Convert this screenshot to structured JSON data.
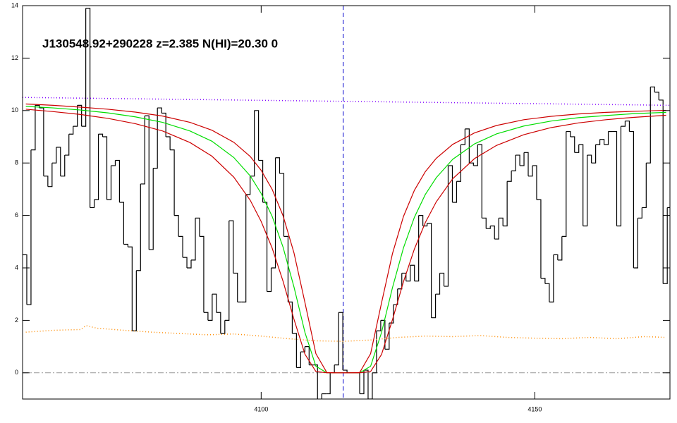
{
  "chart_data": {
    "type": "line",
    "title": "J130548.92+290228 z=2.385 N(HI)=20.30 0",
    "xlim": [
      4056.4,
      4174.7
    ],
    "ylim": [
      -1,
      14
    ],
    "xticks": [
      4100,
      4150
    ],
    "yticks": [
      0,
      2,
      4,
      6,
      8,
      10,
      12,
      14
    ],
    "vline": 4115,
    "vline_color": "#0000cc",
    "hline": 0,
    "hline_color": "#999999",
    "series": [
      {
        "color": "#000000",
        "style": "steps",
        "x": [
          4056.4,
          4057.17,
          4057.94,
          4058.71,
          4059.48,
          4060.25,
          4061.02,
          4061.79,
          4062.56,
          4063.33,
          4064.1,
          4064.87,
          4065.64,
          4066.41,
          4067.18,
          4067.95,
          4068.72,
          4069.49,
          4070.26,
          4071.03,
          4071.8,
          4072.57,
          4073.34,
          4074.11,
          4074.88,
          4075.65,
          4076.42,
          4077.19,
          4077.96,
          4078.73,
          4079.5,
          4080.27,
          4081.04,
          4081.81,
          4082.58,
          4083.35,
          4084.12,
          4084.89,
          4085.66,
          4086.43,
          4087.2,
          4087.97,
          4088.74,
          4089.51,
          4090.28,
          4091.05,
          4091.82,
          4092.59,
          4093.36,
          4094.13,
          4094.9,
          4095.67,
          4096.44,
          4097.21,
          4097.98,
          4098.75,
          4099.52,
          4100.29,
          4101.06,
          4101.83,
          4102.6,
          4103.37,
          4104.14,
          4104.91,
          4105.68,
          4106.45,
          4107.22,
          4107.99,
          4108.76,
          4109.53,
          4110.3,
          4111.07,
          4111.84,
          4112.61,
          4113.38,
          4114.15,
          4114.92,
          4115.69,
          4116.46,
          4117.23,
          4118.0,
          4118.77,
          4119.54,
          4120.31,
          4121.08,
          4121.85,
          4122.62,
          4123.39,
          4124.16,
          4124.93,
          4125.7,
          4126.47,
          4127.24,
          4128.01,
          4128.78,
          4129.55,
          4130.32,
          4131.09,
          4131.86,
          4132.63,
          4133.4,
          4134.17,
          4134.94,
          4135.71,
          4136.48,
          4137.25,
          4138.02,
          4138.79,
          4139.56,
          4140.33,
          4141.1,
          4141.87,
          4142.64,
          4143.41,
          4144.18,
          4144.95,
          4145.72,
          4146.49,
          4147.26,
          4148.03,
          4148.8,
          4149.57,
          4150.34,
          4151.11,
          4151.88,
          4152.65,
          4153.42,
          4154.19,
          4154.96,
          4155.73,
          4156.5,
          4157.27,
          4158.04,
          4158.81,
          4159.58,
          4160.35,
          4161.12,
          4161.89,
          4162.66,
          4163.43,
          4164.2,
          4164.97,
          4165.74,
          4166.51,
          4167.28,
          4168.05,
          4168.82,
          4169.59,
          4170.36,
          4171.13,
          4171.9,
          4172.67,
          4173.44,
          4174.21
        ],
        "values": [
          4.5,
          2.6,
          8.5,
          10.2,
          10.1,
          7.5,
          7.1,
          8.0,
          8.6,
          7.5,
          8.3,
          9.1,
          9.4,
          10.2,
          9.4,
          13.9,
          6.3,
          6.6,
          9.1,
          9.0,
          6.6,
          7.9,
          8.1,
          6.5,
          4.9,
          4.8,
          1.6,
          3.9,
          7.2,
          9.8,
          4.7,
          7.8,
          10.1,
          9.9,
          9.0,
          8.5,
          6.0,
          5.2,
          4.4,
          4.0,
          4.3,
          5.9,
          5.2,
          2.3,
          2.0,
          3.0,
          2.3,
          1.5,
          2.0,
          5.8,
          3.8,
          2.7,
          2.7,
          6.8,
          7.5,
          10.0,
          8.1,
          6.5,
          3.1,
          4.0,
          8.2,
          7.6,
          5.2,
          2.7,
          1.5,
          0.2,
          0.8,
          1.0,
          0.3,
          0.3,
          -1.2,
          -0.8,
          -0.8,
          0.0,
          0.3,
          2.3,
          0.1,
          0.0,
          0.0,
          0.0,
          -0.8,
          0.1,
          -1.0,
          0.0,
          1.6,
          2.0,
          0.9,
          1.9,
          2.6,
          3.2,
          3.8,
          3.5,
          4.1,
          3.5,
          6.0,
          5.6,
          5.7,
          2.1,
          3.0,
          3.8,
          3.3,
          7.9,
          6.5,
          7.3,
          8.7,
          9.3,
          8.0,
          7.9,
          8.7,
          5.9,
          5.5,
          5.6,
          5.1,
          5.9,
          5.6,
          7.3,
          7.7,
          8.3,
          7.9,
          8.4,
          7.5,
          7.9,
          6.6,
          3.6,
          3.4,
          2.7,
          4.5,
          4.3,
          5.2,
          9.2,
          9.0,
          8.4,
          8.7,
          5.6,
          8.3,
          8.0,
          8.7,
          8.9,
          8.7,
          9.2,
          9.2,
          5.6,
          9.4,
          9.6,
          9.2,
          4.0,
          5.9,
          6.3,
          8.0,
          10.9,
          10.7,
          10.4,
          3.4,
          6.3
        ]
      },
      {
        "color": "#8000ff",
        "style": "dotted",
        "x": [
          4056.4,
          4174.7
        ],
        "values": [
          10.5,
          10.2
        ]
      },
      {
        "color": "#ff8c00",
        "style": "dotted",
        "x": [
          4057,
          4062,
          4067,
          4068,
          4070,
          4075,
          4080,
          4085,
          4090,
          4095,
          4100,
          4105,
          4110,
          4115,
          4120,
          4125,
          4130,
          4135,
          4140,
          4145,
          4150,
          4155,
          4160,
          4165,
          4170,
          4174
        ],
        "values": [
          1.55,
          1.62,
          1.65,
          1.8,
          1.7,
          1.62,
          1.55,
          1.5,
          1.45,
          1.48,
          1.4,
          1.3,
          1.22,
          1.2,
          1.25,
          1.35,
          1.4,
          1.38,
          1.42,
          1.35,
          1.32,
          1.3,
          1.35,
          1.3,
          1.38,
          1.35
        ]
      },
      {
        "color": "#00dd00",
        "style": "solid",
        "x": [
          4057,
          4062,
          4067,
          4072,
          4077,
          4082,
          4087,
          4091,
          4095,
          4098,
          4100,
          4102,
          4104,
          4106,
          4108,
          4110,
          4112,
          4114,
          4115,
          4116,
          4118,
          4120,
          4122,
          4124,
          4126,
          4128,
          4130,
          4132,
          4135,
          4139,
          4143,
          4148,
          4153,
          4158,
          4163,
          4168,
          4174
        ],
        "values": [
          10.16,
          10.1,
          10.02,
          9.91,
          9.76,
          9.55,
          9.22,
          8.83,
          8.21,
          7.51,
          6.84,
          5.97,
          4.79,
          3.27,
          1.54,
          0.25,
          0,
          0,
          0,
          0,
          0,
          0.25,
          1.54,
          3.25,
          4.76,
          5.93,
          6.8,
          7.44,
          8.14,
          8.73,
          9.11,
          9.41,
          9.6,
          9.73,
          9.81,
          9.88,
          9.93
        ]
      },
      {
        "color": "#cc0000",
        "style": "solid",
        "x": [
          4057,
          4062,
          4067,
          4072,
          4077,
          4082,
          4087,
          4091,
          4095,
          4098,
          4100,
          4102,
          4104,
          4106,
          4108,
          4110,
          4112,
          4114,
          4115,
          4116,
          4118,
          4120,
          4122,
          4124,
          4126,
          4128,
          4130,
          4132,
          4135,
          4139,
          4143,
          4148,
          4153,
          4158,
          4163,
          4168,
          4174
        ],
        "values": [
          10.05,
          9.96,
          9.85,
          9.7,
          9.5,
          9.22,
          8.78,
          8.26,
          7.46,
          6.58,
          5.77,
          4.76,
          3.49,
          2.04,
          0.71,
          0.05,
          0,
          0,
          0,
          0,
          0,
          0.05,
          0.7,
          2.03,
          3.47,
          4.72,
          5.73,
          6.52,
          7.4,
          8.17,
          8.67,
          9.08,
          9.35,
          9.53,
          9.65,
          9.74,
          9.82
        ]
      },
      {
        "color": "#cc0000",
        "style": "solid",
        "x": [
          4057,
          4062,
          4067,
          4072,
          4077,
          4082,
          4087,
          4091,
          4095,
          4098,
          4100,
          4102,
          4104,
          4106,
          4108,
          4110,
          4112,
          4114,
          4115,
          4116,
          4118,
          4120,
          4122,
          4124,
          4126,
          4128,
          4130,
          4132,
          4135,
          4139,
          4143,
          4148,
          4153,
          4158,
          4163,
          4168,
          4174
        ],
        "values": [
          10.25,
          10.2,
          10.13,
          10.05,
          9.94,
          9.79,
          9.55,
          9.25,
          8.79,
          8.25,
          7.72,
          7.0,
          5.99,
          4.57,
          2.68,
          0.73,
          0.01,
          0,
          0,
          0,
          0.01,
          0.73,
          2.67,
          4.55,
          5.96,
          6.96,
          7.67,
          8.18,
          8.71,
          9.15,
          9.43,
          9.65,
          9.78,
          9.87,
          9.93,
          9.97,
          10.01
        ]
      }
    ]
  }
}
